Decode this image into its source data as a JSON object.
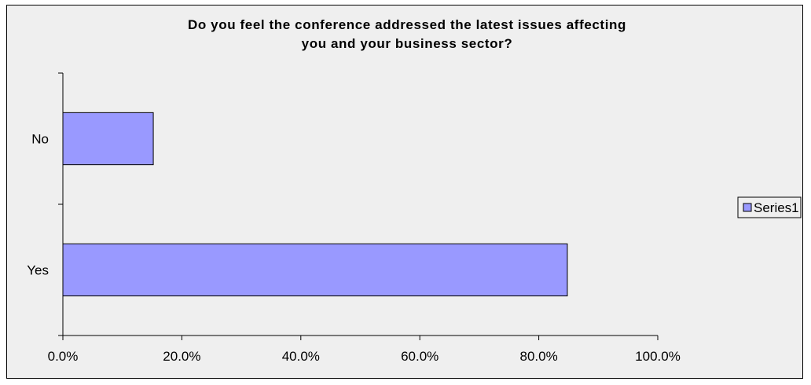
{
  "chart_data": {
    "type": "bar",
    "orientation": "horizontal",
    "title_lines": [
      "Do you feel the conference addressed the latest issues affecting",
      "you and your business sector?"
    ],
    "categories": [
      "No",
      "Yes"
    ],
    "series": [
      {
        "name": "Series1",
        "values": [
          0.152,
          0.848
        ]
      }
    ],
    "xlim": [
      0,
      1
    ],
    "x_ticks": [
      0,
      0.2,
      0.4,
      0.6,
      0.8,
      1.0
    ],
    "x_tick_labels": [
      "0.0%",
      "20.0%",
      "40.0%",
      "60.0%",
      "80.0%",
      "100.0%"
    ],
    "grid": false,
    "legend_position": "right",
    "colors": {
      "bar_fill": "#9999ff",
      "bar_stroke": "#000000",
      "background": "#efefef"
    }
  }
}
